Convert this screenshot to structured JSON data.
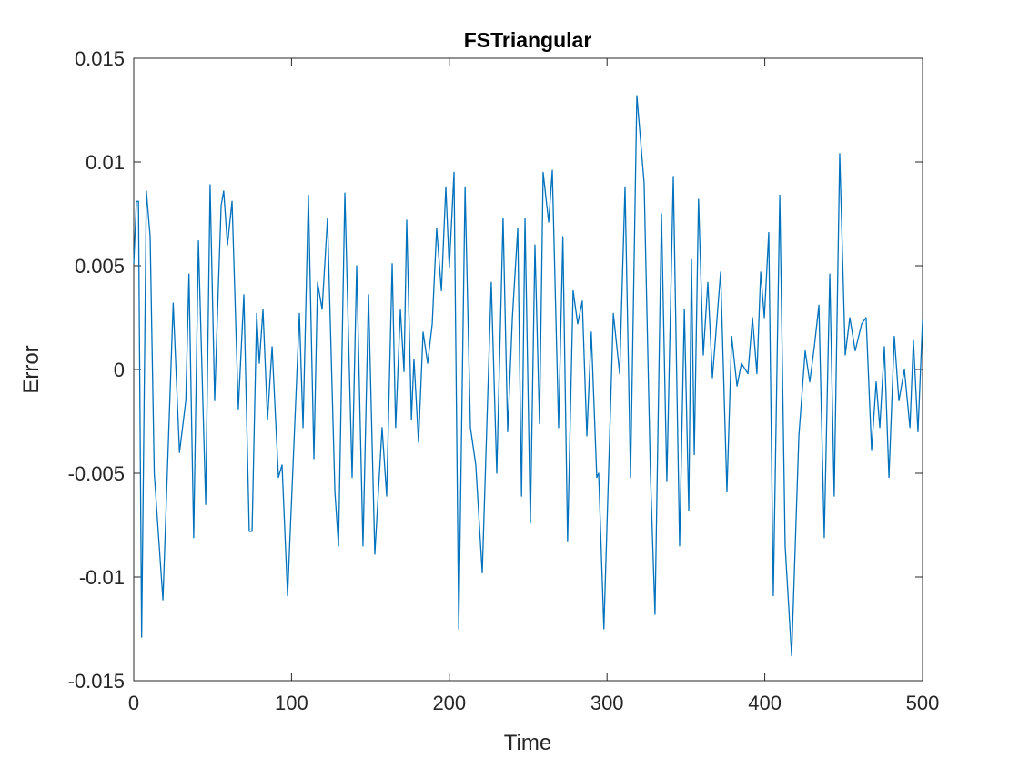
{
  "chart_data": {
    "type": "line",
    "title": "FSTriangular",
    "x_label": "Time",
    "y_label": "Error",
    "xlim": [
      0,
      500
    ],
    "xticks": [
      0,
      100,
      200,
      300,
      400,
      500
    ],
    "ylim": [
      -0.015,
      0.015
    ],
    "yticks": [
      -0.015,
      -0.01,
      -0.005,
      0,
      0.005,
      0.01,
      0.015
    ],
    "grid": false,
    "x": [
      0,
      1.7,
      3,
      5,
      8,
      10.4,
      13,
      18.5,
      25,
      29,
      33,
      35,
      38,
      41,
      45.6,
      48.4,
      51.3,
      53.6,
      55.4,
      57,
      59.4,
      62.3,
      66.3,
      69.8,
      73.2,
      75,
      77.9,
      79.6,
      81.9,
      84.8,
      87.7,
      91.7,
      94,
      97.5,
      105,
      107.3,
      110.7,
      114.2,
      116.5,
      119.4,
      122.8,
      127.5,
      129.8,
      133.8,
      138.4,
      141.3,
      145.3,
      148.8,
      152.8,
      157.4,
      160.3,
      163.8,
      166,
      169,
      171.3,
      173,
      176,
      177.6,
      180.5,
      183.4,
      186.3,
      189.2,
      192,
      195,
      197.8,
      200,
      203,
      206,
      210,
      213.4,
      216.8,
      220.9,
      226.6,
      230.1,
      234.1,
      237,
      240,
      243.4,
      245.8,
      248,
      251.4,
      254.3,
      257.2,
      259.5,
      263,
      265.3,
      269.3,
      272,
      275,
      278.5,
      281.4,
      284.3,
      287.2,
      290,
      293.5,
      294.7,
      298,
      304,
      308,
      311.4,
      314.9,
      318.9,
      323.5,
      327.5,
      330.4,
      334.5,
      337.9,
      342,
      346,
      349,
      351.8,
      353.5,
      355.3,
      358,
      361,
      363.9,
      366.8,
      372,
      376,
      379,
      382.4,
      385.2,
      389.3,
      392.2,
      395,
      397.4,
      399.7,
      402.5,
      405.4,
      409.5,
      412.9,
      417,
      421.6,
      425.6,
      428.5,
      431.4,
      434.3,
      437.7,
      441.2,
      444,
      447.5,
      451,
      453.9,
      457.3,
      461.4,
      464.2,
      467.7,
      470.6,
      472.9,
      475.8,
      478.7,
      482.1,
      485,
      488.5,
      492,
      494.2,
      497.1,
      500
    ],
    "series": [
      {
        "name": "Error",
        "color": "#0072bd",
        "values": [
          0.0051,
          0.0081,
          0.0081,
          -0.0129,
          0.0086,
          0.0064,
          -0.005,
          -0.0111,
          0.0032,
          -0.004,
          -0.0015,
          0.0046,
          -0.0081,
          0.0062,
          -0.0065,
          0.0089,
          -0.0015,
          0.0039,
          0.0079,
          0.0086,
          0.006,
          0.0081,
          -0.0019,
          0.0036,
          -0.0078,
          -0.0078,
          0.0027,
          0.0003,
          0.0029,
          -0.0024,
          0.0011,
          -0.0052,
          -0.0046,
          -0.0109,
          0.0027,
          -0.0028,
          0.0084,
          -0.0043,
          0.0042,
          0.0029,
          0.0073,
          -0.0059,
          -0.0085,
          0.0085,
          -0.0052,
          0.005,
          -0.0085,
          0.0036,
          -0.0089,
          -0.0028,
          -0.0061,
          0.0051,
          -0.0028,
          0.0029,
          -0.0001,
          0.0072,
          -0.0024,
          0.0005,
          -0.0035,
          0.0018,
          0.0003,
          0.0022,
          0.0068,
          0.0038,
          0.0088,
          0.0049,
          0.0095,
          -0.0125,
          0.0088,
          -0.0028,
          -0.0046,
          -0.0098,
          0.0042,
          -0.005,
          0.0073,
          -0.003,
          0.0025,
          0.0068,
          -0.0061,
          0.0073,
          -0.0074,
          0.006,
          -0.0026,
          0.0095,
          0.0071,
          0.0096,
          -0.0028,
          0.0064,
          -0.0083,
          0.0038,
          0.0022,
          0.0033,
          -0.0032,
          0.0018,
          -0.0052,
          -0.005,
          -0.0125,
          0.0027,
          -0.0002,
          0.0088,
          -0.0052,
          0.0132,
          0.009,
          -0.005,
          -0.0118,
          0.0075,
          -0.0054,
          0.0093,
          -0.0085,
          0.0029,
          -0.0068,
          0.0053,
          -0.0041,
          0.0082,
          0.0007,
          0.0042,
          -0.0004,
          0.0047,
          -0.0059,
          0.0016,
          -0.0008,
          0.0003,
          -0.0002,
          0.0025,
          -0.0002,
          0.0047,
          0.0025,
          0.0066,
          -0.0109,
          0.0084,
          -0.0085,
          -0.0138,
          -0.0032,
          0.0009,
          -0.0006,
          0.0011,
          0.0031,
          -0.0081,
          0.0046,
          -0.0061,
          0.0104,
          0.0007,
          0.0025,
          0.0009,
          0.0022,
          0.0025,
          -0.0039,
          -0.0006,
          -0.0028,
          0.0011,
          -0.0052,
          0.0016,
          -0.0015,
          0,
          -0.0028,
          0.0014,
          -0.003,
          0.0024
        ]
      }
    ]
  }
}
